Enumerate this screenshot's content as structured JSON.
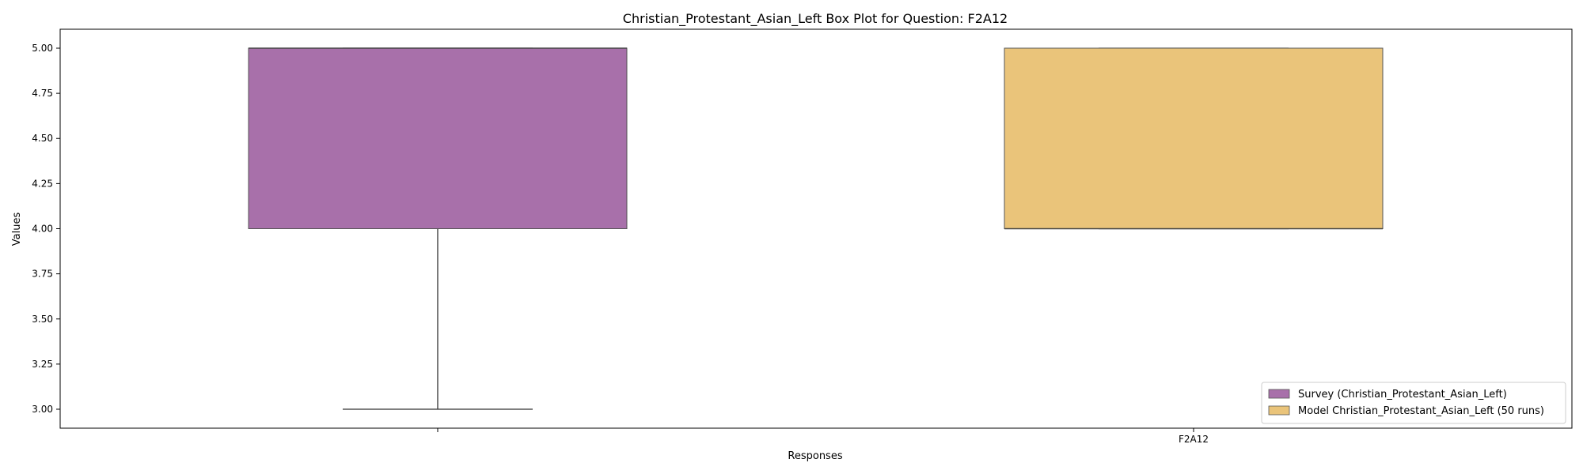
{
  "chart_data": {
    "type": "box",
    "title": "Christian_Protestant_Asian_Left Box Plot for Question: F2A12",
    "xlabel": "Responses",
    "ylabel": "Values",
    "ylim": [
      2.895,
      5.105
    ],
    "yticks": [
      3.0,
      3.25,
      3.5,
      3.75,
      4.0,
      4.25,
      4.5,
      4.75,
      5.0
    ],
    "ytick_labels": [
      "3.00",
      "3.25",
      "3.50",
      "3.75",
      "4.00",
      "4.25",
      "4.50",
      "4.75",
      "5.00"
    ],
    "xtick_labels": [
      "",
      "F2A12"
    ],
    "legend_position": "lower right",
    "grid": false,
    "series": [
      {
        "name": "Survey (Christian_Protestant_Asian_Left)",
        "color": "#a870aa",
        "whisker_low": 3.0,
        "q1": 4.0,
        "median": 5.0,
        "q3": 5.0,
        "whisker_high": 5.0
      },
      {
        "name": "Model Christian_Protestant_Asian_Left (50 runs)",
        "color": "#eac47a",
        "whisker_low": 4.0,
        "q1": 4.0,
        "median": 4.0,
        "q3": 5.0,
        "whisker_high": 5.0
      }
    ]
  }
}
